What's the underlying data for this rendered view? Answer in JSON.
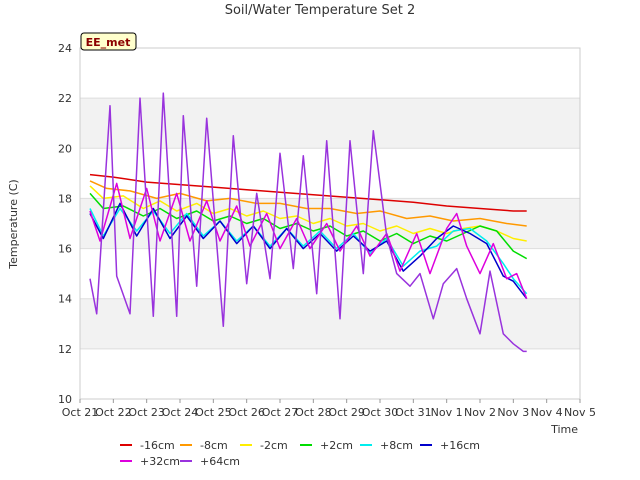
{
  "chart_data": {
    "type": "line",
    "title": "Soil/Water Temperature Set 2",
    "xlabel": "Time",
    "ylabel": "Temperature (C)",
    "ylim": [
      10,
      24
    ],
    "yticks": [
      "10",
      "12",
      "14",
      "16",
      "18",
      "20",
      "22",
      "24"
    ],
    "xlim": [
      21,
      36
    ],
    "xticks": [
      "Oct 21",
      "Oct 22",
      "Oct 23",
      "Oct 24",
      "Oct 25",
      "Oct 26",
      "Oct 27",
      "Oct 28",
      "Oct 29",
      "Oct 30",
      "Oct 31",
      "Nov 1",
      "Nov 2",
      "Nov 3",
      "Nov 4",
      "Nov 5"
    ],
    "grid": "horizontal bands",
    "legend_position": "bottom",
    "badge": "EE_met",
    "series": [
      {
        "name": "-16cm",
        "color": "#dd0000",
        "x": [
          21.3,
          22,
          23,
          24,
          25,
          26,
          27,
          28,
          29,
          30,
          31,
          32,
          33,
          34,
          34.4
        ],
        "y": [
          18.95,
          18.85,
          18.65,
          18.55,
          18.45,
          18.35,
          18.25,
          18.15,
          18.05,
          17.95,
          17.85,
          17.7,
          17.6,
          17.5,
          17.5
        ]
      },
      {
        "name": "-8cm",
        "color": "#ff9900",
        "x": [
          21.3,
          21.8,
          22.5,
          23.3,
          24,
          24.8,
          25.5,
          26.3,
          27,
          27.8,
          28.5,
          29.3,
          30,
          30.8,
          31.5,
          32.2,
          33,
          33.8,
          34.4
        ],
        "y": [
          18.7,
          18.4,
          18.3,
          18.0,
          18.2,
          17.9,
          18.0,
          17.8,
          17.8,
          17.6,
          17.6,
          17.4,
          17.5,
          17.2,
          17.3,
          17.1,
          17.2,
          17.0,
          16.9
        ]
      },
      {
        "name": "-2cm",
        "color": "#ffee00",
        "x": [
          21.3,
          21.7,
          22.3,
          22.9,
          23.4,
          23.9,
          24.5,
          25.0,
          25.5,
          26.0,
          26.5,
          27.0,
          27.5,
          28.0,
          28.5,
          29.0,
          29.5,
          30.0,
          30.5,
          31.0,
          31.5,
          32.0,
          32.5,
          33.0,
          33.5,
          34.0,
          34.4
        ],
        "y": [
          18.5,
          18.0,
          18.1,
          17.6,
          17.9,
          17.5,
          17.8,
          17.4,
          17.6,
          17.3,
          17.5,
          17.2,
          17.3,
          17.0,
          17.2,
          16.9,
          17.0,
          16.7,
          16.9,
          16.6,
          16.8,
          16.6,
          16.8,
          16.9,
          16.7,
          16.4,
          16.3
        ]
      },
      {
        "name": "+2cm",
        "color": "#00dd00",
        "x": [
          21.3,
          21.7,
          22.3,
          22.9,
          23.4,
          23.9,
          24.5,
          25.0,
          25.5,
          26.0,
          26.5,
          27.0,
          27.5,
          28.0,
          28.5,
          29.0,
          29.5,
          30.0,
          30.5,
          31.0,
          31.5,
          32.0,
          32.5,
          33.0,
          33.5,
          34.0,
          34.4
        ],
        "y": [
          18.2,
          17.6,
          17.7,
          17.3,
          17.6,
          17.2,
          17.5,
          17.1,
          17.3,
          17.0,
          17.2,
          16.8,
          17.0,
          16.7,
          16.9,
          16.5,
          16.7,
          16.3,
          16.6,
          16.2,
          16.5,
          16.3,
          16.6,
          16.9,
          16.7,
          15.9,
          15.6
        ]
      },
      {
        "name": "+8cm",
        "color": "#00eeee",
        "x": [
          21.3,
          21.7,
          22.2,
          22.7,
          23.2,
          23.7,
          24.2,
          24.7,
          25.2,
          25.7,
          26.2,
          26.7,
          27.2,
          27.7,
          28.2,
          28.7,
          29.2,
          29.7,
          30.2,
          30.7,
          31.2,
          31.7,
          32.2,
          32.7,
          33.2,
          33.7,
          34.0,
          34.4
        ],
        "y": [
          17.6,
          16.5,
          17.6,
          16.7,
          17.5,
          16.6,
          17.4,
          16.5,
          17.1,
          16.3,
          16.9,
          16.1,
          16.8,
          16.1,
          16.7,
          16.0,
          16.6,
          15.8,
          16.4,
          15.3,
          15.9,
          16.1,
          16.7,
          16.8,
          16.3,
          15.4,
          14.8,
          14.2
        ]
      },
      {
        "name": "+16cm",
        "color": "#0000cc",
        "x": [
          21.3,
          21.7,
          22.2,
          22.7,
          23.2,
          23.7,
          24.2,
          24.7,
          25.2,
          25.7,
          26.2,
          26.7,
          27.2,
          27.7,
          28.2,
          28.7,
          29.2,
          29.7,
          30.2,
          30.7,
          31.2,
          31.7,
          32.2,
          32.7,
          33.2,
          33.7,
          34.0,
          34.4
        ],
        "y": [
          17.4,
          16.4,
          17.8,
          16.5,
          17.6,
          16.4,
          17.3,
          16.4,
          17.1,
          16.2,
          16.9,
          16.0,
          16.8,
          16.0,
          16.6,
          15.9,
          16.5,
          15.9,
          16.3,
          15.1,
          15.7,
          16.4,
          16.9,
          16.6,
          16.2,
          14.9,
          14.7,
          14.0
        ]
      },
      {
        "name": "+32cm",
        "color": "#dd00dd",
        "x": [
          21.3,
          21.6,
          22.1,
          22.5,
          23.0,
          23.4,
          23.9,
          24.3,
          24.8,
          25.2,
          25.7,
          26.1,
          26.6,
          27.0,
          27.5,
          27.9,
          28.4,
          28.8,
          29.3,
          29.7,
          30.2,
          30.6,
          31.1,
          31.5,
          32.0,
          32.3,
          32.6,
          33.0,
          33.4,
          33.8,
          34.1,
          34.4
        ],
        "y": [
          17.5,
          16.3,
          18.6,
          16.4,
          18.4,
          16.3,
          18.2,
          16.3,
          17.9,
          16.3,
          17.7,
          16.1,
          17.4,
          16.0,
          17.2,
          16.0,
          17.0,
          15.9,
          16.9,
          15.7,
          16.6,
          15.1,
          16.6,
          15.0,
          16.8,
          17.4,
          16.1,
          15.0,
          16.2,
          14.8,
          15.0,
          14.0
        ]
      },
      {
        "name": "+64cm",
        "color": "#9933dd",
        "x": [
          21.3,
          21.5,
          21.9,
          22.1,
          22.5,
          22.8,
          23.2,
          23.5,
          23.9,
          24.1,
          24.5,
          24.8,
          25.3,
          25.6,
          26.0,
          26.3,
          26.7,
          27.0,
          27.4,
          27.7,
          28.1,
          28.4,
          28.8,
          29.1,
          29.5,
          29.8,
          30.2,
          30.5,
          30.9,
          31.2,
          31.6,
          31.9,
          32.3,
          32.6,
          33.0,
          33.3,
          33.7,
          34.0,
          34.3,
          34.4
        ],
        "y": [
          14.8,
          13.4,
          21.7,
          14.9,
          13.4,
          22.0,
          13.3,
          22.2,
          13.3,
          21.3,
          14.5,
          21.2,
          12.9,
          20.5,
          14.6,
          18.2,
          14.8,
          19.8,
          15.2,
          19.7,
          14.2,
          20.3,
          13.2,
          20.3,
          15.0,
          20.7,
          16.5,
          15.0,
          14.5,
          15.0,
          13.2,
          14.6,
          15.2,
          14.0,
          12.6,
          15.1,
          12.6,
          12.2,
          11.9,
          11.9
        ]
      }
    ]
  }
}
